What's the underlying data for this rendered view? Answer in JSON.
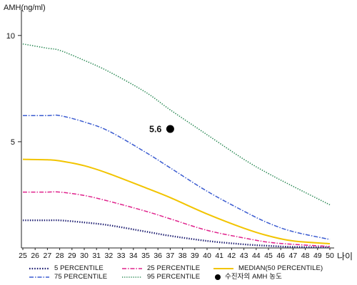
{
  "chart_data": {
    "type": "line",
    "title": "",
    "ylabel": "AMH(ng/ml)",
    "xlabel": "나이",
    "xlim": [
      25,
      50
    ],
    "ylim": [
      0,
      11.2
    ],
    "x_ticks": [
      25,
      26,
      27,
      28,
      29,
      30,
      31,
      32,
      33,
      34,
      35,
      36,
      37,
      38,
      39,
      40,
      41,
      42,
      43,
      44,
      45,
      46,
      47,
      48,
      49,
      50
    ],
    "y_ticks": [
      5,
      10
    ],
    "grid": false,
    "legend_position": "bottom",
    "x": [
      25,
      27,
      28,
      30,
      32,
      35,
      37,
      40,
      43,
      45,
      47,
      50
    ],
    "series": [
      {
        "name": "5 PERCENTILE",
        "color": "#1c1c70",
        "line_style": "dotted",
        "values": [
          1.3,
          1.3,
          1.3,
          1.2,
          1.07,
          0.77,
          0.57,
          0.33,
          0.17,
          0.1,
          0.05,
          0.03
        ]
      },
      {
        "name": "75 PERCENTILE",
        "color": "#3a5bd0",
        "line_style": "dash-dot",
        "values": [
          6.23,
          6.23,
          6.23,
          5.93,
          5.5,
          4.5,
          3.77,
          2.67,
          1.73,
          1.17,
          0.77,
          0.4
        ]
      },
      {
        "name": "25 PERCENTILE",
        "color": "#e0228c",
        "line_style": "dash-dot",
        "values": [
          2.63,
          2.63,
          2.63,
          2.47,
          2.2,
          1.73,
          1.37,
          0.83,
          0.47,
          0.27,
          0.17,
          0.07
        ]
      },
      {
        "name": "95 PERCENTILE",
        "color": "#2e8b57",
        "line_style": "dotted",
        "values": [
          9.6,
          9.4,
          9.3,
          8.83,
          8.3,
          7.33,
          6.5,
          5.33,
          4.17,
          3.5,
          2.9,
          2.03
        ]
      },
      {
        "name": "MEDIAN(50 PERCENTILE)",
        "color": "#f2c400",
        "line_style": "solid",
        "values": [
          4.17,
          4.15,
          4.1,
          3.87,
          3.5,
          2.83,
          2.37,
          1.6,
          0.93,
          0.57,
          0.33,
          0.2
        ]
      }
    ],
    "points": [
      {
        "name": "수진자의 AMH 농도",
        "x": 37,
        "y": 5.6,
        "label": "5.6",
        "color": "#000000"
      }
    ]
  }
}
